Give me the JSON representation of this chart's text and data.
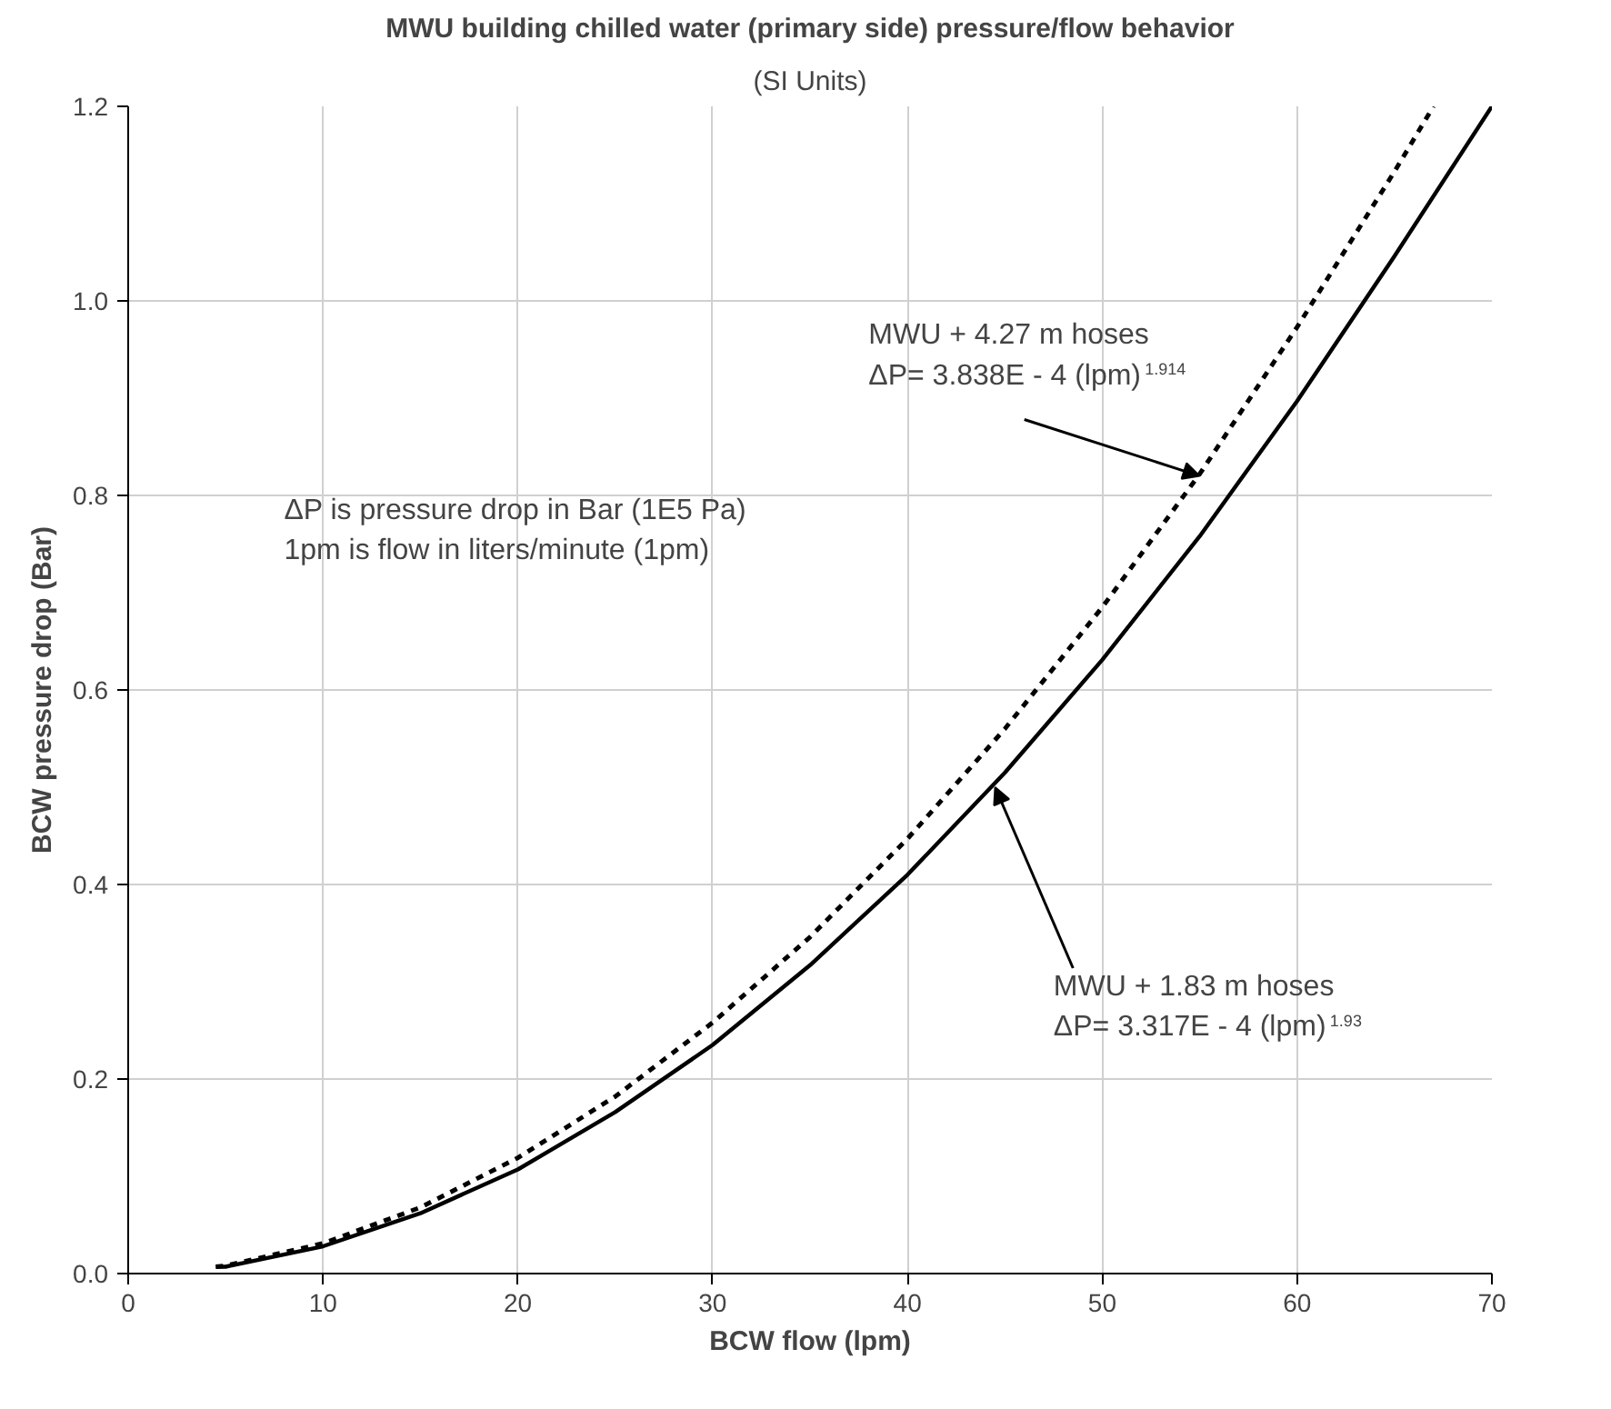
{
  "chart_data": {
    "type": "line",
    "title": "MWU building chilled water (primary side) pressure/flow behavior",
    "subtitle": "(SI Units)",
    "xlabel": "BCW flow (lpm)",
    "ylabel": "BCW pressure drop (Bar)",
    "series": [
      {
        "color": "#000000",
        "line_style": "solid",
        "x": [
          4.5,
          5,
          10,
          15,
          20,
          25,
          30,
          35,
          40,
          45,
          50,
          55,
          60,
          65,
          70
        ],
        "values": [
          0.007,
          0.007,
          0.028,
          0.062,
          0.107,
          0.166,
          0.235,
          0.317,
          0.41,
          0.515,
          0.631,
          0.758,
          0.897,
          1.046,
          1.2
        ]
      },
      {
        "color": "#000000",
        "line_style": "dashed",
        "x": [
          4.5,
          5,
          10,
          15,
          20,
          25,
          30,
          35,
          40,
          45,
          50,
          55,
          60,
          65,
          67
        ],
        "values": [
          0.007,
          0.008,
          0.031,
          0.068,
          0.119,
          0.182,
          0.258,
          0.346,
          0.447,
          0.56,
          0.685,
          0.822,
          0.973,
          1.133,
          1.2
        ]
      }
    ],
    "annotations": [
      {
        "text": "MWU + 4.27 m hoses\nΔP= 3.838E - 4 (lpm)$^{1.914}$",
        "x": 55,
        "y": 0.82
      },
      {
        "text": "MWU + 1.83 m hoses\nΔP= 3.317E - 4 (lpm)$^{1.93}$",
        "x": 44.5,
        "y": 0.5
      },
      "ΔP is pressure drop in Bar (1E5 Pa)\n1pm is flow in liters/minute (1pm)"
    ],
    "xlim": [
      0,
      70
    ],
    "ylim": [
      0,
      1.2
    ],
    "xticks": [
      0,
      10,
      20,
      30,
      40,
      50,
      60,
      70
    ],
    "yticks": [
      {
        "value": 0,
        "label": "0.0"
      },
      {
        "value": 0.2,
        "label": "0.2"
      },
      {
        "value": 0.4,
        "label": "0.4"
      },
      {
        "value": 0.6,
        "label": "0.6"
      },
      {
        "value": 0.8,
        "label": "0.8"
      },
      {
        "value": 1.0,
        "label": "1.0"
      },
      {
        "value": 1.2,
        "label": "1.2"
      }
    ],
    "grid": true
  }
}
